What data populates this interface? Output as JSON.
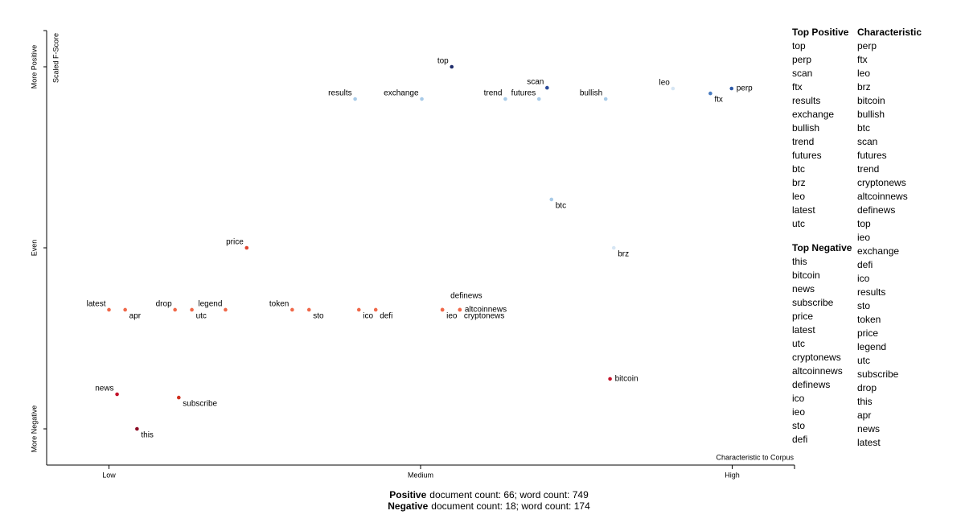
{
  "chart_data": {
    "type": "scatter",
    "y_label": "Scaled F-Score",
    "x_label": "Characteristic to Corpus",
    "labels": [
      "top",
      "scan",
      "results",
      "exchange",
      "trend",
      "futures",
      "bullish",
      "leo",
      "ftx",
      "perp",
      "btc",
      "brz",
      "price",
      "latest",
      "apr",
      "drop",
      "utc",
      "legend",
      "token",
      "sto",
      "ico",
      "defi",
      "definews",
      "ieo",
      "altcoinnews",
      "cryptonews",
      "news",
      "subscribe",
      "this",
      "bitcoin"
    ],
    "x": [
      0.55,
      0.703,
      0.395,
      0.502,
      0.636,
      0.69,
      0.797,
      0.905,
      0.965,
      0.999,
      0.71,
      0.81,
      0.221,
      0.0,
      0.026,
      0.106,
      0.133,
      0.187,
      0.294,
      0.321,
      0.401,
      0.428,
      0.535,
      0.535,
      0.563,
      0.563,
      0.013,
      0.112,
      0.045,
      0.804
    ],
    "values": [
      1.0,
      0.884,
      0.822,
      0.822,
      0.822,
      0.822,
      0.822,
      0.88,
      0.853,
      0.88,
      0.267,
      0.0,
      0.0,
      -0.342,
      -0.342,
      -0.342,
      -0.342,
      -0.342,
      -0.342,
      -0.342,
      -0.342,
      -0.342,
      -0.342,
      -0.342,
      -0.342,
      -0.342,
      -0.809,
      -0.827,
      -1.0,
      -0.724
    ],
    "colors": [
      "#1f2d6b",
      "#2a4a9a",
      "#a8cbe8",
      "#a8cbe8",
      "#a8cbe8",
      "#a8cbe8",
      "#a8cbe8",
      "#d6e6f4",
      "#4a7cc0",
      "#2e5aa8",
      "#a8cbe8",
      "#d6e6f4",
      "#e0452f",
      "#f0694a",
      "#f0694a",
      "#f0694a",
      "#f0694a",
      "#f0694a",
      "#f0694a",
      "#f0694a",
      "#f0694a",
      "#f0694a",
      "#f0694a",
      "#f0694a",
      "#f0694a",
      "#f0694a",
      "#c4122a",
      "#d0301f",
      "#8c0a24",
      "#c4122a"
    ],
    "xlim": [
      -0.1,
      1.1
    ],
    "ylim": [
      -1.2,
      1.2
    ],
    "xticks": [
      {
        "value": 0,
        "label": "Low"
      },
      {
        "value": 0.5,
        "label": "Medium"
      },
      {
        "value": 1,
        "label": "High"
      }
    ],
    "yticks": [
      {
        "value": -1,
        "label": "More Negative"
      },
      {
        "value": 0,
        "label": "Even"
      },
      {
        "value": 1,
        "label": "More Positive"
      }
    ]
  },
  "top_positive": {
    "title": "Top Positive",
    "items": [
      "top",
      "perp",
      "scan",
      "ftx",
      "results",
      "exchange",
      "bullish",
      "trend",
      "futures",
      "btc",
      "brz",
      "leo",
      "latest",
      "utc"
    ]
  },
  "top_negative": {
    "title": "Top Negative",
    "items": [
      "this",
      "bitcoin",
      "news",
      "subscribe",
      "price",
      "latest",
      "utc",
      "cryptonews",
      "altcoinnews",
      "definews",
      "ico",
      "ieo",
      "sto",
      "defi"
    ]
  },
  "characteristic": {
    "title": "Characteristic",
    "items": [
      "perp",
      "ftx",
      "leo",
      "brz",
      "bitcoin",
      "bullish",
      "btc",
      "scan",
      "futures",
      "trend",
      "cryptonews",
      "altcoinnews",
      "definews",
      "top",
      "ieo",
      "exchange",
      "defi",
      "ico",
      "results",
      "sto",
      "token",
      "price",
      "legend",
      "utc",
      "subscribe",
      "drop",
      "this",
      "apr",
      "news",
      "latest"
    ]
  },
  "footer": [
    {
      "bold": "Positive",
      "text": "document count: 66; word count: 749"
    },
    {
      "bold": "Negative",
      "text": "document count: 18; word count: 174"
    }
  ]
}
